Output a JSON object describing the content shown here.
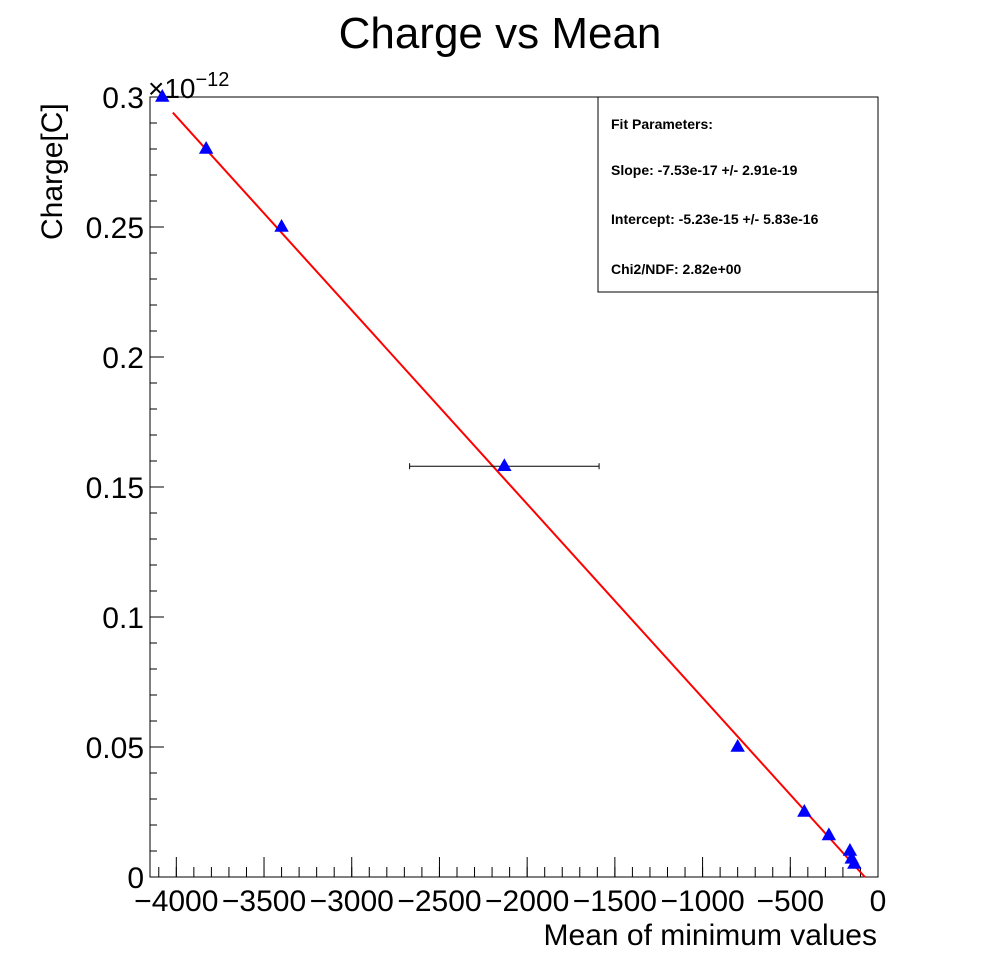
{
  "chart_data": {
    "type": "scatter",
    "title": "Charge vs Mean",
    "xlabel": "Mean of minimum values",
    "ylabel": "Charge[C]",
    "y_exponent_label": "×10",
    "y_exponent_power": "−12",
    "xlim": [
      -4150,
      0
    ],
    "ylim": [
      0,
      0.3
    ],
    "x_ticks": [
      -4000,
      -3500,
      -3000,
      -2500,
      -2000,
      -1500,
      -1000,
      -500,
      0
    ],
    "x_tick_labels": [
      "−4000",
      "−3500",
      "−3000",
      "−2500",
      "−2000",
      "−1500",
      "−1000",
      "−500",
      "0"
    ],
    "y_ticks": [
      0,
      0.05,
      0.1,
      0.15,
      0.2,
      0.25,
      0.3
    ],
    "y_tick_labels": [
      "0",
      "0.05",
      "0.1",
      "0.15",
      "0.2",
      "0.25",
      "0.3"
    ],
    "grid": false,
    "series": [
      {
        "marker": "triangle",
        "color": "#0000ff",
        "x": [
          -4080,
          -3830,
          -3400,
          -2130,
          -800,
          -420,
          -280,
          -160,
          -150,
          -135
        ],
        "y": [
          0.3,
          0.28,
          0.25,
          0.158,
          0.05,
          0.025,
          0.016,
          0.01,
          0.007,
          0.005
        ],
        "x_err": [
          0,
          0,
          0,
          540,
          0,
          0,
          0,
          0,
          0,
          0
        ]
      }
    ],
    "fit_line": {
      "color": "#ff0000",
      "x": [
        -4020,
        -75
      ],
      "y": [
        0.294,
        0.0
      ]
    },
    "annotations": {
      "header": "Fit Parameters:",
      "lines": [
        "Slope: -7.53e-17 +/- 2.91e-19",
        "Intercept: -5.23e-15 +/- 5.83e-16",
        "Chi2/NDF: 2.82e+00"
      ]
    }
  }
}
